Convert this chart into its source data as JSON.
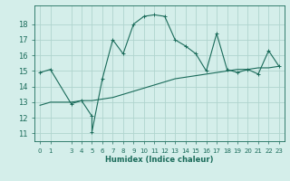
{
  "title": "",
  "xlabel": "Humidex (Indice chaleur)",
  "background_color": "#d4eeea",
  "grid_color": "#b0d4ce",
  "line_color": "#1a6b5a",
  "x_ticks": [
    0,
    1,
    3,
    4,
    5,
    6,
    7,
    8,
    9,
    10,
    11,
    12,
    13,
    14,
    15,
    16,
    17,
    18,
    19,
    20,
    21,
    22,
    23
  ],
  "ylim": [
    10.5,
    19.2
  ],
  "xlim": [
    -0.5,
    23.5
  ],
  "yticks": [
    11,
    12,
    13,
    14,
    15,
    16,
    17,
    18
  ],
  "curve1_x": [
    0,
    1,
    3,
    4,
    5,
    5,
    6,
    7,
    8,
    9,
    10,
    11,
    12,
    13,
    14,
    15,
    16,
    17,
    18,
    19,
    20,
    21,
    22,
    23
  ],
  "curve1_y": [
    14.9,
    15.1,
    12.9,
    13.1,
    12.1,
    11.1,
    14.5,
    17.0,
    16.1,
    18.0,
    18.5,
    18.6,
    18.5,
    17.0,
    16.6,
    16.1,
    15.0,
    17.4,
    15.1,
    14.9,
    15.1,
    14.8,
    16.3,
    15.3
  ],
  "curve2_x": [
    0,
    1,
    3,
    4,
    5,
    6,
    7,
    8,
    9,
    10,
    11,
    12,
    13,
    14,
    15,
    16,
    17,
    18,
    19,
    20,
    21,
    22,
    23
  ],
  "curve2_y": [
    12.8,
    13.0,
    13.0,
    13.1,
    13.1,
    13.2,
    13.3,
    13.5,
    13.7,
    13.9,
    14.1,
    14.3,
    14.5,
    14.6,
    14.7,
    14.8,
    14.9,
    15.0,
    15.1,
    15.1,
    15.2,
    15.2,
    15.3
  ]
}
